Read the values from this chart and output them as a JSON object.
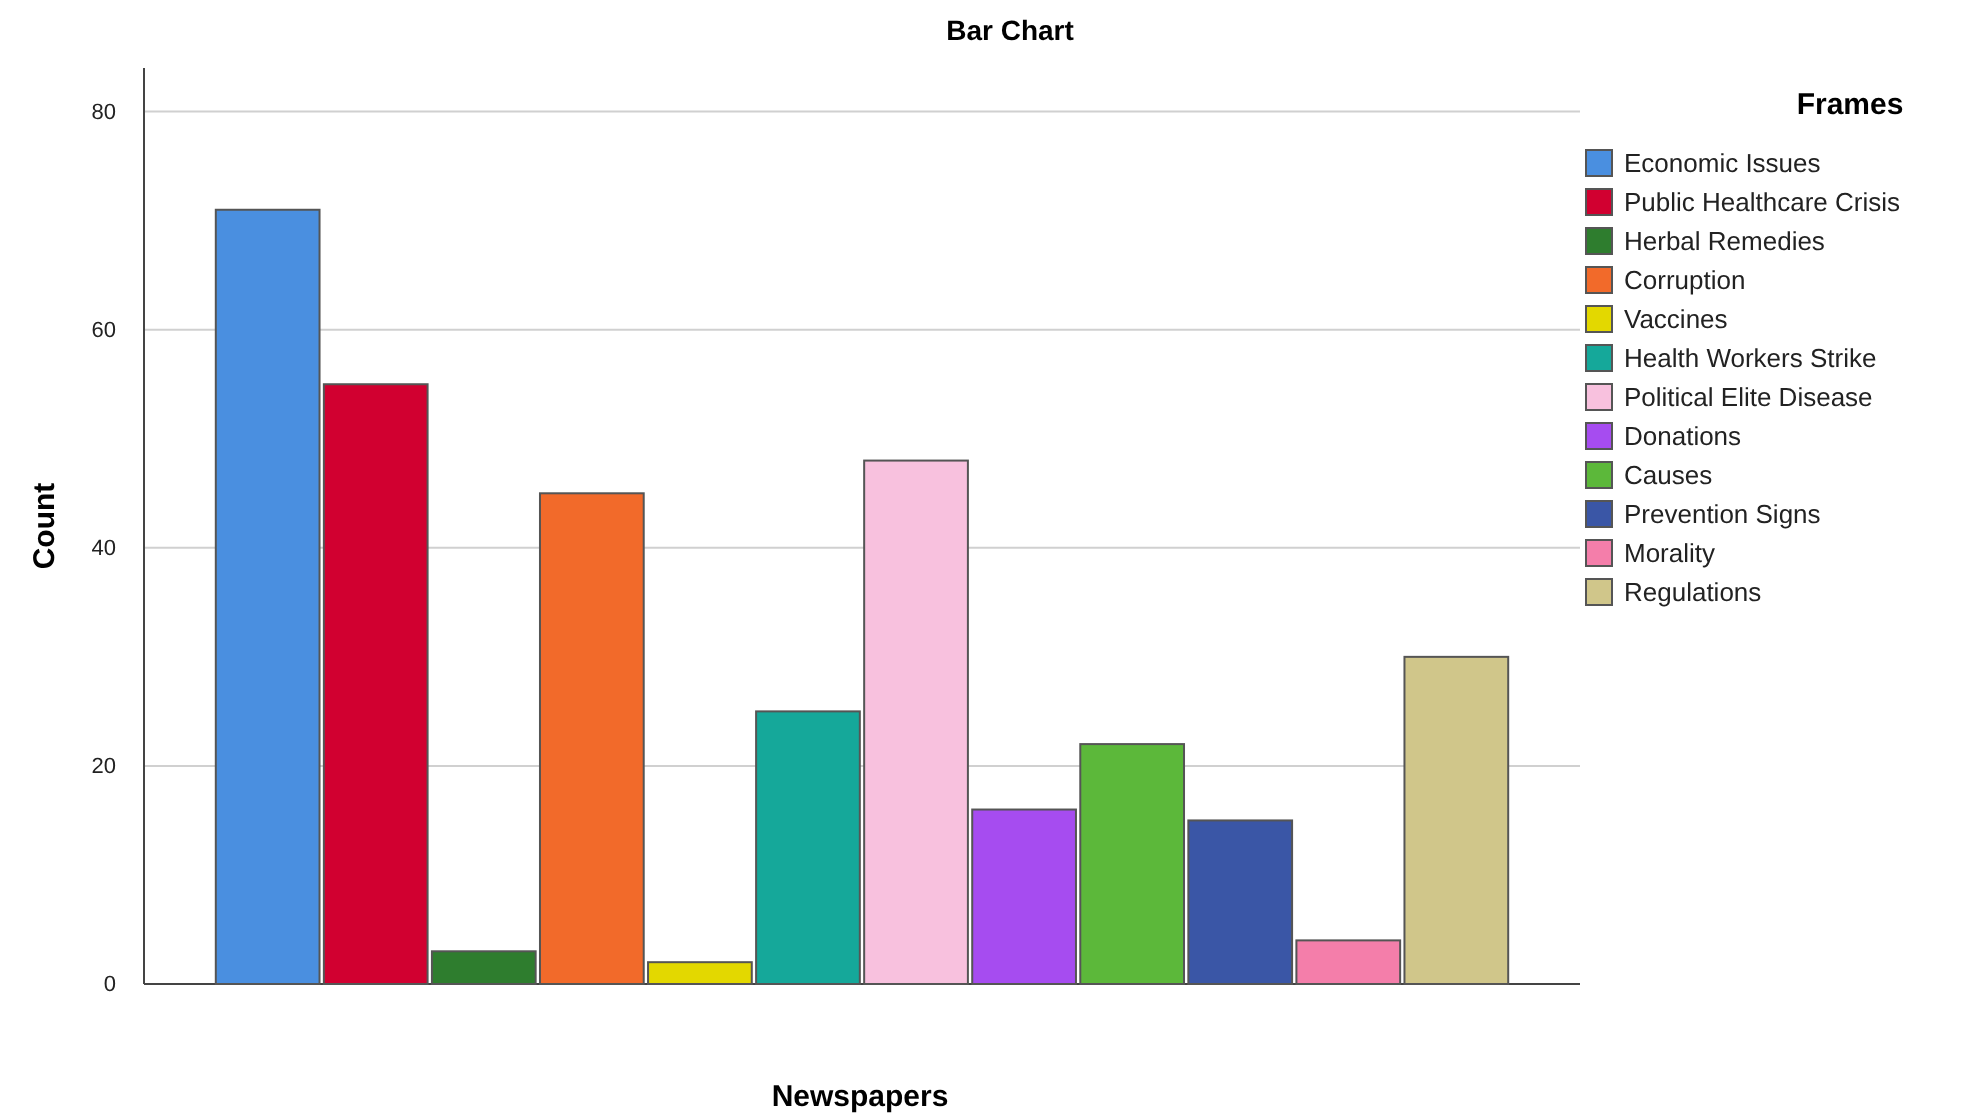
{
  "chart_data": {
    "type": "bar",
    "title": "Bar Chart",
    "xlabel": "Newspapers",
    "ylabel": "Count",
    "legend_title": "Frames",
    "categories": [
      null
    ],
    "series": [
      {
        "name": "Economic Issues",
        "color": "#4a8fe0",
        "values": [
          71
        ]
      },
      {
        "name": "Public Healthcare Crisis",
        "color": "#d10030",
        "values": [
          55
        ]
      },
      {
        "name": "Herbal Remedies",
        "color": "#2e7d2e",
        "values": [
          3
        ]
      },
      {
        "name": "Corruption",
        "color": "#f26a2a",
        "values": [
          45
        ]
      },
      {
        "name": "Vaccines",
        "color": "#e3d800",
        "values": [
          2
        ]
      },
      {
        "name": "Health Workers Strike",
        "color": "#15a89a",
        "values": [
          25
        ]
      },
      {
        "name": "Political Elite Disease",
        "color": "#f8c1de",
        "values": [
          48
        ]
      },
      {
        "name": "Donations",
        "color": "#a64cf0",
        "values": [
          16
        ]
      },
      {
        "name": "Causes",
        "color": "#5cb83a",
        "values": [
          22
        ]
      },
      {
        "name": "Prevention Signs",
        "color": "#3a56a6",
        "values": [
          15
        ]
      },
      {
        "name": "Morality",
        "color": "#f47eaa",
        "values": [
          4
        ]
      },
      {
        "name": "Regulations",
        "color": "#d0c68a",
        "values": [
          30
        ]
      }
    ],
    "ylim": [
      0,
      84
    ],
    "yticks": [
      0,
      20,
      40,
      60,
      80
    ],
    "grid": "y",
    "legend": "right"
  }
}
